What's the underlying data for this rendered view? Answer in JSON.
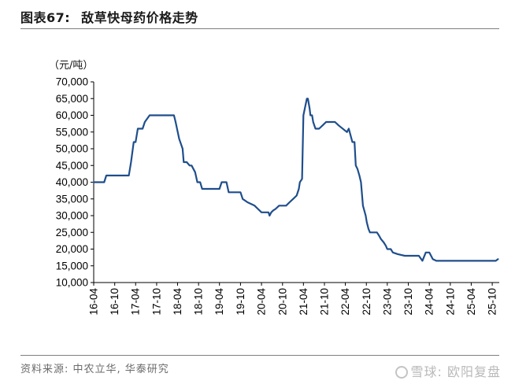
{
  "figure": {
    "label": "图表67:",
    "title": "敌草快母药价格走势",
    "source": "资料来源: 中农立华, 华泰研究",
    "watermark": "雪球: 欧阳复盘"
  },
  "colors": {
    "series": "#1f4e8c",
    "axis": "#000000",
    "rule": "#7f7f7f"
  },
  "chart_data": {
    "type": "line",
    "ylabel": "（元/吨）",
    "xlabel": "",
    "ylim": [
      10000,
      70000
    ],
    "yticks": [
      10000,
      15000,
      20000,
      25000,
      30000,
      35000,
      40000,
      45000,
      50000,
      55000,
      60000,
      65000,
      70000
    ],
    "ytick_labels": [
      "10,000",
      "15,000",
      "20,000",
      "25,000",
      "30,000",
      "35,000",
      "40,000",
      "45,000",
      "50,000",
      "55,000",
      "60,000",
      "65,000",
      "70,000"
    ],
    "xlim": [
      "2016-04-01",
      "2025-12-01"
    ],
    "xticks": [
      "2016-04-01",
      "2016-10-01",
      "2017-04-01",
      "2017-10-01",
      "2018-04-01",
      "2018-10-01",
      "2019-04-01",
      "2019-10-01",
      "2020-04-01",
      "2020-10-01",
      "2021-04-01",
      "2021-10-01",
      "2022-04-01",
      "2022-10-01",
      "2023-04-01",
      "2023-10-01",
      "2024-04-01",
      "2024-10-01",
      "2025-04-01",
      "2025-10-01"
    ],
    "xtick_labels": [
      "16-04",
      "16-10",
      "17-04",
      "17-10",
      "18-04",
      "18-10",
      "19-04",
      "19-10",
      "20-04",
      "20-10",
      "21-04",
      "21-10",
      "22-04",
      "22-10",
      "23-04",
      "23-10",
      "24-04",
      "24-10",
      "25-04",
      "25-10"
    ],
    "grid": false,
    "legend": "none",
    "series": [
      {
        "x": [
          "2016-04-01",
          "2016-07-01",
          "2016-07-20",
          "2017-02-01",
          "2017-02-20",
          "2017-03-15",
          "2017-04-01",
          "2017-04-20",
          "2017-06-01",
          "2017-06-20",
          "2017-08-01",
          "2018-03-01",
          "2018-03-15",
          "2018-04-15",
          "2018-05-15",
          "2018-05-25",
          "2018-06-20",
          "2018-07-15",
          "2018-08-01",
          "2018-09-01",
          "2018-09-20",
          "2018-10-15",
          "2018-11-01",
          "2019-04-01",
          "2019-04-20",
          "2019-06-01",
          "2019-06-20",
          "2019-09-01",
          "2019-10-01",
          "2019-10-20",
          "2019-12-01",
          "2020-02-01",
          "2020-03-01",
          "2020-04-01",
          "2020-06-01",
          "2020-06-10",
          "2020-06-25",
          "2020-07-10",
          "2020-08-01",
          "2020-09-01",
          "2020-10-01",
          "2020-11-01",
          "2020-12-01",
          "2021-01-01",
          "2021-02-01",
          "2021-02-20",
          "2021-03-01",
          "2021-03-20",
          "2021-04-01",
          "2021-05-01",
          "2021-05-10",
          "2021-05-25",
          "2021-06-01",
          "2021-06-15",
          "2021-06-25",
          "2021-07-15",
          "2021-08-15",
          "2021-09-15",
          "2021-10-15",
          "2021-11-15",
          "2021-12-15",
          "2022-01-01",
          "2022-02-01",
          "2022-04-15",
          "2022-05-01",
          "2022-06-01",
          "2022-06-20",
          "2022-07-01",
          "2022-07-15",
          "2022-08-01",
          "2022-08-15",
          "2022-09-01",
          "2022-09-25",
          "2022-10-05",
          "2022-10-20",
          "2022-11-01",
          "2022-11-20",
          "2022-12-01",
          "2022-12-20",
          "2023-01-01",
          "2023-01-20",
          "2023-02-05",
          "2023-03-01",
          "2023-03-20",
          "2023-04-01",
          "2023-05-01",
          "2023-05-20",
          "2023-07-01",
          "2023-09-01",
          "2023-10-01",
          "2023-11-01",
          "2024-01-01",
          "2024-02-01",
          "2024-03-01",
          "2024-04-01",
          "2024-05-01",
          "2024-06-01",
          "2024-09-01",
          "2024-12-01",
          "2025-03-01",
          "2025-03-20",
          "2025-04-01",
          "2025-04-20",
          "2025-05-01",
          "2025-05-20",
          "2025-07-01",
          "2025-09-01",
          "2025-11-01",
          "2025-11-20"
        ],
        "y": [
          40000,
          40000,
          42000,
          42000,
          46000,
          52000,
          52000,
          56000,
          56000,
          58000,
          60000,
          60000,
          58000,
          53000,
          50000,
          46000,
          46000,
          45000,
          45000,
          43000,
          40000,
          40000,
          38000,
          38000,
          40000,
          40000,
          37000,
          37000,
          37000,
          35000,
          34000,
          33000,
          32000,
          31000,
          31000,
          30000,
          31000,
          31500,
          32000,
          33000,
          33000,
          33000,
          34000,
          35000,
          36000,
          38000,
          40000,
          41000,
          60000,
          65000,
          65000,
          62000,
          60000,
          60000,
          58000,
          56000,
          56000,
          57000,
          58000,
          58000,
          58000,
          58000,
          57000,
          55000,
          56000,
          52000,
          52000,
          45000,
          44000,
          42000,
          40000,
          33000,
          30000,
          28000,
          26000,
          25000,
          25000,
          25000,
          25000,
          25000,
          24000,
          23000,
          22000,
          21000,
          20000,
          20000,
          19000,
          18500,
          18000,
          18000,
          18000,
          18000,
          16500,
          19000,
          19000,
          17000,
          16500,
          16500,
          16500,
          16500,
          16500,
          16500,
          16500,
          16500,
          16500,
          16500,
          16500,
          16500,
          17000
        ]
      }
    ]
  }
}
